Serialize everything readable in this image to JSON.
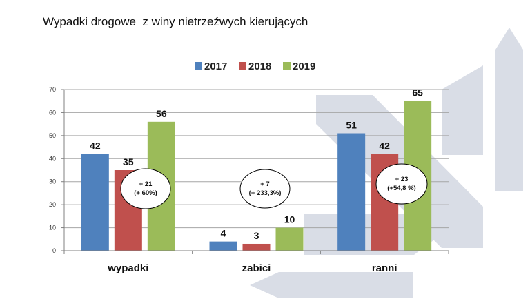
{
  "slide": {
    "title": "Wypadki drogowe  z winy nietrzeźwych kierujących"
  },
  "chart_data": {
    "type": "bar",
    "title": "",
    "xlabel": "",
    "ylabel": "",
    "categories": [
      "wypadki",
      "zabici",
      "ranni"
    ],
    "series": [
      {
        "name": "2017",
        "color": "#4f81bd",
        "values": [
          42,
          4,
          51
        ]
      },
      {
        "name": "2018",
        "color": "#c0504d",
        "values": [
          35,
          3,
          42
        ]
      },
      {
        "name": "2019",
        "color": "#9bbb59",
        "values": [
          56,
          10,
          65
        ]
      }
    ],
    "ylim": [
      0,
      70
    ],
    "yticks": [
      0,
      10,
      20,
      30,
      40,
      50,
      60,
      70
    ],
    "grid": true,
    "legend": "top",
    "annotations": [
      {
        "category": "wypadki",
        "lines": [
          "+ 21",
          "(+ 60%)"
        ]
      },
      {
        "category": "zabici",
        "lines": [
          "+ 7",
          "(+ 233,3%)"
        ]
      },
      {
        "category": "ranni",
        "lines": [
          "+ 23",
          "(+54,8 %)"
        ]
      }
    ]
  }
}
